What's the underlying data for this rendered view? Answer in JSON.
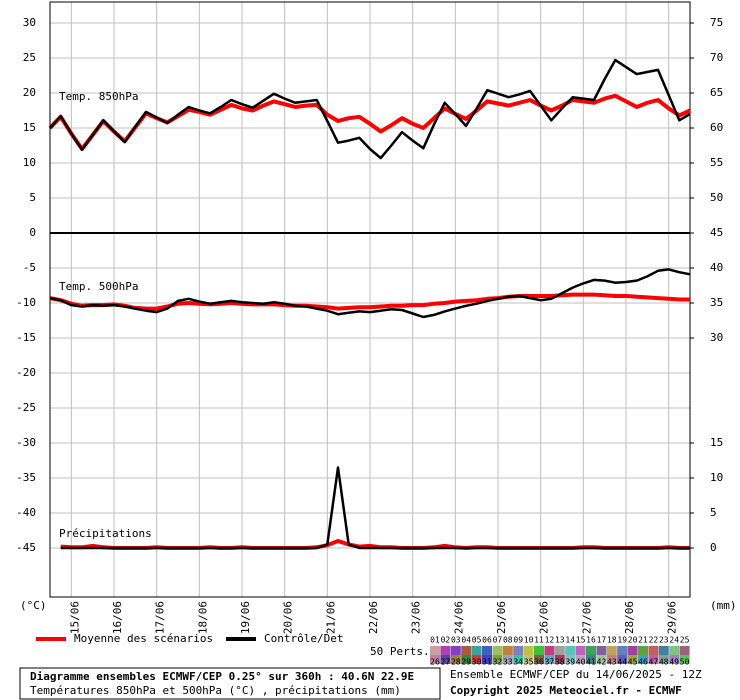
{
  "chart_data": {
    "type": "line",
    "title": "Diagramme ensembles ECMWF/CEP 0.25° sur 360h : 40.6N 22.9E",
    "subtitle": "Températures 850hPa et 500hPa (°C) , précipitations (mm)",
    "run_label": "Ensemble ECMWF/CEP du 14/06/2025 - 12Z",
    "copyright": "Copyright 2025 Meteociel.fr - ECMWF",
    "y_unit": "(°C)",
    "y2_unit": "(mm)",
    "categories": [
      null,
      null,
      "15/06",
      null,
      null,
      null,
      "16/06",
      null,
      null,
      null,
      "17/06",
      null,
      null,
      null,
      "18/06",
      null,
      null,
      null,
      "19/06",
      null,
      null,
      null,
      "20/06",
      null,
      null,
      null,
      "21/06",
      null,
      null,
      null,
      "22/06",
      null,
      null,
      null,
      "23/06",
      null,
      null,
      null,
      "24/06",
      null,
      null,
      null,
      "25/06",
      null,
      null,
      null,
      "26/06",
      null,
      null,
      null,
      "27/06",
      null,
      null,
      null,
      "28/06",
      null,
      null,
      null,
      "29/06",
      null,
      null
    ],
    "ylim": [
      -52,
      33
    ],
    "yticks": [
      30,
      25,
      20,
      15,
      10,
      5,
      0,
      -5,
      -10,
      -15,
      -20,
      -25,
      -30,
      -35,
      -40,
      -45
    ],
    "y2lim": [
      -7,
      78
    ],
    "y2ticks": [
      75,
      70,
      65,
      60,
      55,
      50,
      45,
      40,
      35,
      30,
      15,
      10,
      5,
      0
    ],
    "grid": true,
    "legend": {
      "mean": {
        "name": "Moyenne des scénarios",
        "color": "#ff0000"
      },
      "control": {
        "name": "Contrôle/Det",
        "color": "#000000"
      }
    },
    "series": [
      {
        "name": "Temp. 850hPa",
        "mean": [
          15.0,
          16.6,
          14.2,
          12.0,
          14.0,
          16.0,
          14.5,
          13.1,
          15.1,
          17.1,
          16.4,
          15.8,
          16.7,
          17.6,
          17.3,
          16.9,
          17.6,
          18.3,
          17.8,
          17.5,
          18.2,
          18.8,
          18.4,
          18.0,
          18.2,
          18.3,
          16.9,
          16.0,
          16.4,
          16.6,
          15.6,
          14.5,
          15.4,
          16.4,
          15.6,
          15.0,
          16.4,
          17.8,
          17.0,
          16.3,
          17.5,
          18.8,
          18.5,
          18.2,
          18.6,
          19.0,
          18.2,
          17.5,
          18.2,
          19.0,
          18.8,
          18.6,
          19.2,
          19.6,
          18.8,
          18.0,
          18.6,
          19.0,
          17.8,
          16.8,
          17.5
        ],
        "control": [
          15.0,
          16.7,
          14.2,
          11.9,
          14.0,
          16.1,
          14.5,
          13.0,
          15.2,
          17.3,
          16.5,
          15.7,
          16.9,
          18.0,
          17.5,
          17.1,
          18.0,
          19.0,
          18.4,
          17.9,
          18.9,
          19.9,
          19.2,
          18.6,
          18.8,
          19.0,
          16.0,
          12.9,
          13.2,
          13.6,
          12.0,
          10.7,
          12.5,
          14.4,
          13.2,
          12.1,
          15.5,
          18.6,
          17.0,
          15.3,
          17.8,
          20.4,
          19.9,
          19.4,
          19.8,
          20.3,
          18.2,
          16.1,
          17.8,
          19.4,
          19.2,
          19.0,
          22.0,
          24.7,
          23.7,
          22.7,
          23.0,
          23.3,
          19.7,
          16.1,
          17.0
        ]
      },
      {
        "name": "Temp. 500hPa",
        "mean": [
          -9.3,
          -9.6,
          -10.1,
          -10.4,
          -10.3,
          -10.3,
          -10.2,
          -10.4,
          -10.7,
          -10.8,
          -10.8,
          -10.5,
          -10.1,
          -10.0,
          -10.1,
          -10.2,
          -10.1,
          -10.0,
          -10.1,
          -10.2,
          -10.2,
          -10.2,
          -10.3,
          -10.4,
          -10.4,
          -10.5,
          -10.6,
          -10.8,
          -10.7,
          -10.6,
          -10.6,
          -10.5,
          -10.4,
          -10.4,
          -10.3,
          -10.3,
          -10.1,
          -10.0,
          -9.8,
          -9.7,
          -9.6,
          -9.4,
          -9.3,
          -9.1,
          -9.0,
          -9.0,
          -9.0,
          -9.0,
          -8.9,
          -8.8,
          -8.8,
          -8.8,
          -8.9,
          -9.0,
          -9.0,
          -9.1,
          -9.2,
          -9.3,
          -9.4,
          -9.5,
          -9.5
        ],
        "control": [
          -9.3,
          -9.6,
          -10.3,
          -10.5,
          -10.3,
          -10.4,
          -10.3,
          -10.5,
          -10.8,
          -11.1,
          -11.3,
          -10.8,
          -9.7,
          -9.4,
          -9.8,
          -10.1,
          -9.9,
          -9.7,
          -9.9,
          -10.0,
          -10.1,
          -9.9,
          -10.1,
          -10.4,
          -10.5,
          -10.8,
          -11.1,
          -11.6,
          -11.4,
          -11.2,
          -11.3,
          -11.1,
          -10.9,
          -11.0,
          -11.5,
          -12.0,
          -11.7,
          -11.2,
          -10.8,
          -10.4,
          -10.1,
          -9.7,
          -9.4,
          -9.1,
          -9.0,
          -9.3,
          -9.6,
          -9.4,
          -8.6,
          -7.8,
          -7.2,
          -6.7,
          -6.8,
          -7.1,
          -7.0,
          -6.8,
          -6.2,
          -5.4,
          -5.2,
          -5.6,
          -5.9
        ]
      },
      {
        "name": "Précipitations",
        "axis": "y2",
        "mean": [
          null,
          0.2,
          0.1,
          0.1,
          0.3,
          0.1,
          0,
          0,
          0,
          0,
          0.1,
          0,
          0,
          0,
          0,
          0.1,
          0,
          0,
          0.1,
          0,
          0,
          0,
          0,
          0,
          0,
          0.1,
          0.4,
          1.0,
          0.5,
          0.2,
          0.3,
          0.1,
          0.1,
          0,
          0,
          0,
          0.1,
          0.3,
          0.1,
          0,
          0.1,
          0.1,
          0,
          0,
          0,
          0,
          0,
          0,
          0,
          0,
          0.1,
          0.1,
          0,
          0,
          0,
          0,
          0,
          0,
          0.1,
          0,
          0
        ],
        "control": [
          null,
          0,
          0,
          0,
          0,
          0,
          0,
          0,
          0,
          0,
          0,
          0,
          0,
          0,
          0,
          0,
          0,
          0,
          0,
          0,
          0,
          0,
          0,
          0,
          0,
          0,
          0.5,
          11.5,
          0.5,
          0,
          0,
          0,
          0,
          0,
          0,
          0,
          0,
          0,
          0,
          0,
          0,
          0,
          0,
          0,
          0,
          0,
          0,
          0,
          0,
          0,
          0,
          0,
          0,
          0,
          0,
          0,
          0,
          0,
          0,
          0,
          0
        ]
      }
    ],
    "perts": {
      "label": "50 Perts.",
      "items": [
        "01",
        "02",
        "03",
        "04",
        "05",
        "06",
        "07",
        "08",
        "09",
        "10",
        "11",
        "12",
        "13",
        "14",
        "15",
        "16",
        "17",
        "18",
        "19",
        "20",
        "21",
        "22",
        "23",
        "24",
        "25",
        "26",
        "27",
        "28",
        "29",
        "30",
        "31",
        "32",
        "33",
        "34",
        "35",
        "36",
        "37",
        "38",
        "39",
        "40",
        "41",
        "42",
        "43",
        "44",
        "45",
        "46",
        "47",
        "48",
        "49",
        "50"
      ],
      "colors": [
        "#c8a0a0",
        "#b040b0",
        "#8040c0",
        "#a06040",
        "#40a0a0",
        "#4060c0",
        "#a0c060",
        "#c08040",
        "#8080c0",
        "#c0c040",
        "#40c040",
        "#c04080",
        "#a0a0a0",
        "#60c0c0",
        "#c060c0",
        "#40a060",
        "#8060a0",
        "#c0a060",
        "#6080c0",
        "#a040a0",
        "#60a040",
        "#c06060",
        "#4080a0",
        "#80c080",
        "#a06080",
        "#c080a0",
        "#6040a0",
        "#a08040",
        "#408040",
        "#c04040",
        "#4040c0",
        "#80a040",
        "#a0a0c0",
        "#40c0a0",
        "#c0c080",
        "#806040",
        "#60a0c0",
        "#a04060",
        "#80c0c0",
        "#c0a0c0",
        "#408080",
        "#a0c0a0",
        "#c08080",
        "#6060c0",
        "#a0a040",
        "#40a0c0",
        "#c060a0",
        "#80a0a0",
        "#a080c0",
        "#60c060"
      ]
    }
  }
}
